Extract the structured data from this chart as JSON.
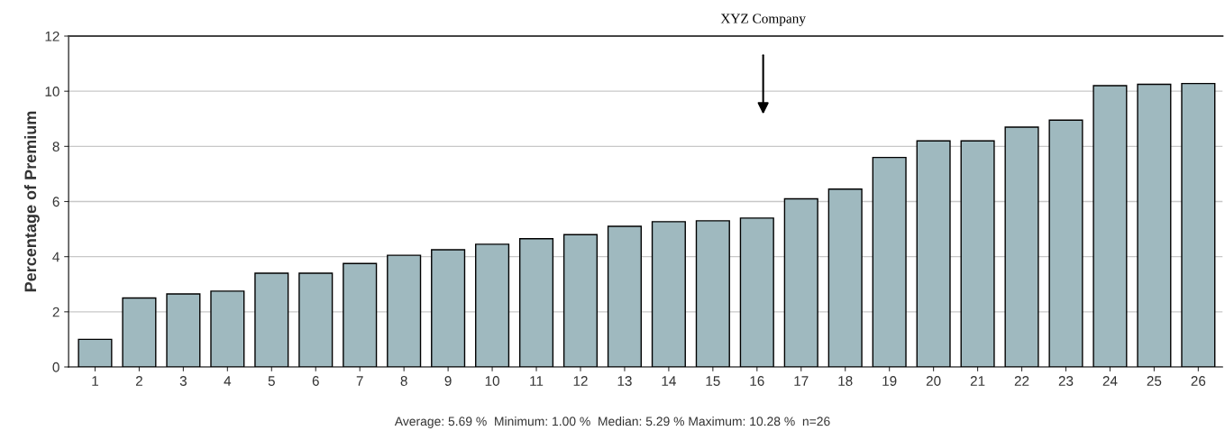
{
  "chart_data": {
    "type": "bar",
    "ylabel": "Percentage of Premium",
    "categories": [
      "1",
      "2",
      "3",
      "4",
      "5",
      "6",
      "7",
      "8",
      "9",
      "10",
      "11",
      "12",
      "13",
      "14",
      "15",
      "16",
      "17",
      "18",
      "19",
      "20",
      "21",
      "22",
      "23",
      "24",
      "25",
      "26"
    ],
    "values": [
      1.0,
      2.5,
      2.65,
      2.75,
      3.4,
      3.4,
      3.75,
      4.05,
      4.25,
      4.45,
      4.65,
      4.8,
      5.1,
      5.27,
      5.3,
      5.4,
      6.1,
      6.45,
      7.6,
      8.2,
      8.2,
      8.7,
      8.95,
      10.2,
      10.25,
      10.28
    ],
    "color": "#9fb9bf",
    "ylim": [
      0,
      12
    ],
    "yticks": [
      0,
      2,
      4,
      6,
      8,
      10,
      12
    ],
    "grid": "y",
    "annotations": [
      "XYZ Company",
      "Average: 5.69 %  Minimum: 1.00 %  Median: 5.29 % Maximum: 10.28 %  n=26"
    ]
  }
}
